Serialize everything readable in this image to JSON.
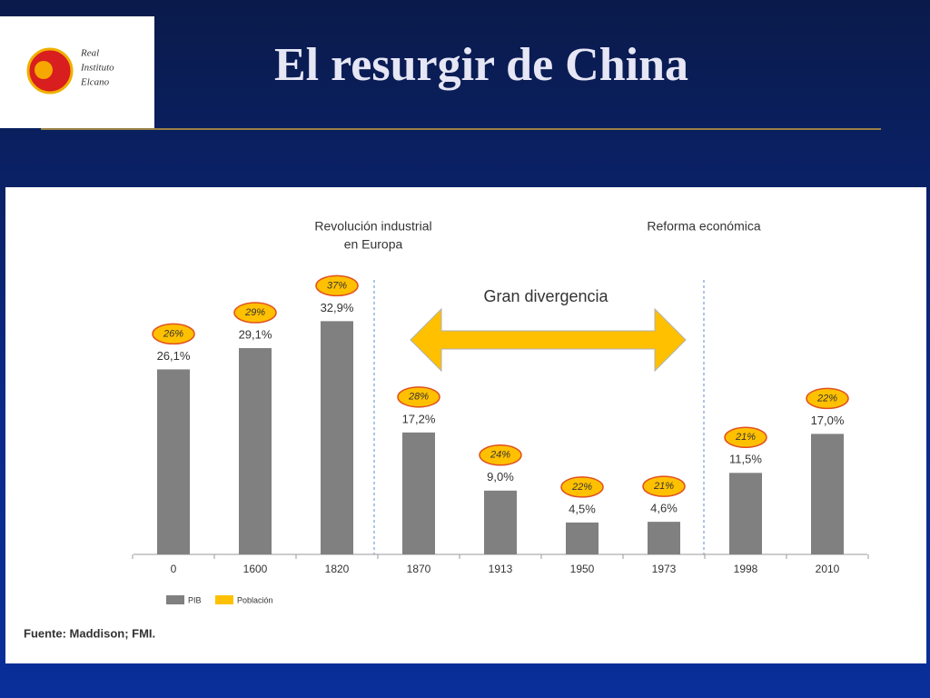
{
  "logo": {
    "lines": [
      "Real",
      "Instituto",
      "Elcano"
    ]
  },
  "chart_data": {
    "type": "bar",
    "title": "El resurgir de China",
    "categories": [
      "0",
      "1600",
      "1820",
      "1870",
      "1913",
      "1950",
      "1973",
      "1998",
      "2010"
    ],
    "series": [
      {
        "name": "PIB",
        "color": "#808080",
        "values": [
          26.1,
          29.1,
          32.9,
          17.2,
          9.0,
          4.5,
          4.6,
          11.5,
          17.0
        ],
        "value_labels": [
          "26,1%",
          "29,1%",
          "32,9%",
          "17,2%",
          "9,0%",
          "4,5%",
          "4,6%",
          "11,5%",
          "17,0%"
        ]
      },
      {
        "name": "Población",
        "color": "#ffc000",
        "values": [
          26,
          29,
          37,
          28,
          24,
          22,
          21,
          21,
          22
        ],
        "value_labels": [
          "26%",
          "29%",
          "37%",
          "28%",
          "24%",
          "22%",
          "21%",
          "21%",
          "22%"
        ]
      }
    ],
    "annotations": {
      "industrial": [
        "Revolución industrial",
        "en Europa"
      ],
      "reform": "Reforma económica",
      "divergence": "Gran divergencia"
    },
    "source": "Fuente: Maddison; FMI."
  }
}
